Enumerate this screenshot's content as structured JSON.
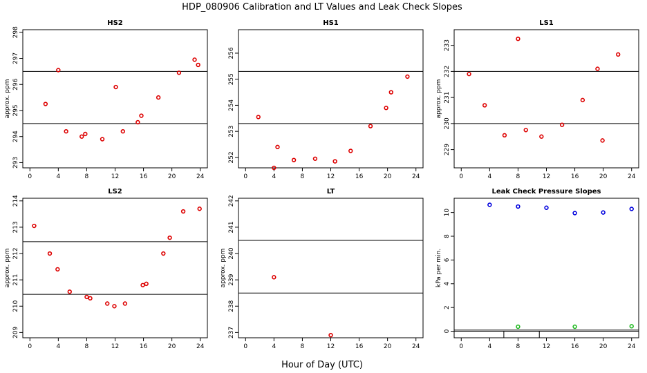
{
  "figure": {
    "title": "HDP_080906  Calibration and LT Values and Leak Check Slopes",
    "xlabel": "Hour of Day (UTC)"
  },
  "chart_data": [
    {
      "id": "hs2",
      "type": "scatter",
      "title": "HS2",
      "xlabel": "",
      "ylabel": "approx. ppm",
      "xlim": [
        -1,
        25
      ],
      "ylim": [
        292.8,
        298.1
      ],
      "xticks": [
        0,
        4,
        8,
        12,
        16,
        20,
        24
      ],
      "yticks": [
        293,
        294,
        295,
        296,
        297,
        298
      ],
      "hlines": [
        294.5,
        296.5
      ],
      "series": [
        {
          "color": "#dd0000",
          "x": [
            2.2,
            4.0,
            5.1,
            7.3,
            7.8,
            10.2,
            12.1,
            13.1,
            15.2,
            15.7,
            18.1,
            21.0,
            23.2,
            23.7
          ],
          "y": [
            295.25,
            296.55,
            294.2,
            294.0,
            294.1,
            293.9,
            295.9,
            294.2,
            294.55,
            294.8,
            295.5,
            296.45,
            296.95,
            296.75
          ]
        }
      ]
    },
    {
      "id": "hs1",
      "type": "scatter",
      "title": "HS1",
      "xlabel": "",
      "ylabel": "",
      "xlim": [
        -1,
        25
      ],
      "ylim": [
        251.6,
        256.9
      ],
      "xticks": [
        0,
        4,
        8,
        12,
        16,
        20,
        24
      ],
      "yticks": [
        252,
        253,
        254,
        255,
        256
      ],
      "hlines": [
        253.3,
        255.3
      ],
      "series": [
        {
          "color": "#dd0000",
          "x": [
            1.8,
            4.0,
            4.5,
            6.8,
            9.8,
            12.6,
            14.8,
            17.6,
            19.8,
            20.5,
            22.8
          ],
          "y": [
            253.55,
            251.6,
            252.4,
            251.9,
            251.95,
            251.85,
            252.25,
            253.2,
            253.9,
            254.5,
            255.1
          ]
        }
      ]
    },
    {
      "id": "ls1",
      "type": "scatter",
      "title": "LS1",
      "xlabel": "",
      "ylabel": "approx. ppm",
      "xlim": [
        -1,
        25
      ],
      "ylim": [
        228.3,
        233.6
      ],
      "xticks": [
        0,
        4,
        8,
        12,
        16,
        20,
        24
      ],
      "yticks": [
        229,
        230,
        231,
        232,
        233
      ],
      "hlines": [
        230.0,
        232.0
      ],
      "series": [
        {
          "color": "#dd0000",
          "x": [
            1.1,
            3.3,
            6.1,
            8.0,
            9.1,
            11.3,
            14.2,
            17.1,
            19.2,
            19.9,
            22.1
          ],
          "y": [
            231.9,
            230.7,
            229.55,
            233.25,
            229.75,
            229.5,
            229.95,
            230.9,
            232.1,
            229.35,
            232.65
          ]
        }
      ]
    },
    {
      "id": "ls2",
      "type": "scatter",
      "title": "LS2",
      "xlabel": "",
      "ylabel": "approx. ppm",
      "xlim": [
        -1,
        25
      ],
      "ylim": [
        208.8,
        214.1
      ],
      "xticks": [
        0,
        4,
        8,
        12,
        16,
        20,
        24
      ],
      "yticks": [
        209,
        210,
        211,
        212,
        213,
        214
      ],
      "hlines": [
        210.45,
        212.45
      ],
      "series": [
        {
          "color": "#dd0000",
          "x": [
            0.6,
            2.8,
            3.9,
            5.6,
            8.0,
            8.5,
            10.9,
            11.9,
            13.4,
            15.9,
            16.4,
            18.8,
            19.7,
            21.6,
            23.9
          ],
          "y": [
            213.05,
            212.0,
            211.4,
            210.55,
            210.35,
            210.3,
            210.1,
            210.0,
            210.1,
            210.8,
            210.85,
            212.0,
            212.6,
            213.6,
            213.7
          ]
        }
      ]
    },
    {
      "id": "lt",
      "type": "scatter",
      "title": "LT",
      "xlabel": "",
      "ylabel": "approx. ppm",
      "xlim": [
        -1,
        25
      ],
      "ylim": [
        236.8,
        242.1
      ],
      "xticks": [
        0,
        4,
        8,
        12,
        16,
        20,
        24
      ],
      "yticks": [
        237,
        238,
        239,
        240,
        241,
        242
      ],
      "hlines": [
        238.5,
        240.5
      ],
      "series": [
        {
          "color": "#dd0000",
          "x": [
            4.0,
            12.0
          ],
          "y": [
            239.1,
            236.9
          ]
        }
      ]
    },
    {
      "id": "leak",
      "type": "scatter",
      "title": "Leak Check Pressure Slopes",
      "xlabel": "",
      "ylabel": "kPa per min.",
      "xlim": [
        -1,
        25
      ],
      "ylim": [
        -0.55,
        11.2
      ],
      "xticks": [
        0,
        4,
        8,
        12,
        16,
        20,
        24
      ],
      "yticks": [
        0,
        2,
        4,
        6,
        8,
        10
      ],
      "hlines": [
        0.0,
        0.1
      ],
      "box": {
        "x": [
          6.0,
          11.0
        ],
        "y": [
          -0.55,
          0.0
        ]
      },
      "series": [
        {
          "color": "#0000dd",
          "x": [
            4.0,
            8.0,
            12.0,
            16.0,
            20.0,
            24.0
          ],
          "y": [
            10.65,
            10.5,
            10.4,
            9.95,
            10.0,
            10.3
          ]
        },
        {
          "color": "#22bb22",
          "x": [
            8.0,
            16.0,
            24.0
          ],
          "y": [
            0.38,
            0.38,
            0.42
          ]
        }
      ]
    }
  ]
}
